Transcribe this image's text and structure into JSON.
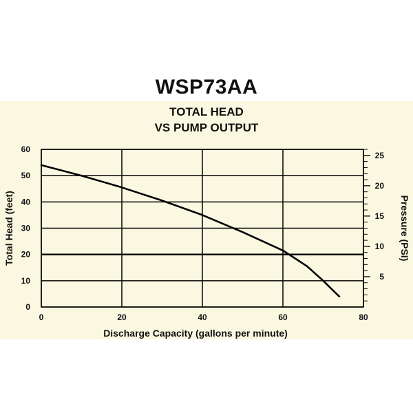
{
  "chart_data": {
    "type": "line",
    "title": "WSP73AA",
    "subtitle_line1": "TOTAL HEAD",
    "subtitle_line2": "VS PUMP OUTPUT",
    "xlabel": "Discharge Capacity (gallons per minute)",
    "ylabel": "Total Head (feet)",
    "y2label": "Pressure (PSI)",
    "xlim": [
      0,
      80
    ],
    "ylim": [
      0,
      60
    ],
    "y2lim": [
      0,
      26
    ],
    "x_ticks": [
      "0",
      "20",
      "40",
      "60",
      "80"
    ],
    "y_ticks": [
      "0",
      "10",
      "20",
      "30",
      "40",
      "50",
      "60"
    ],
    "y2_ticks": [
      "5",
      "10",
      "15",
      "20",
      "25"
    ],
    "grid": true,
    "series": [
      {
        "name": "",
        "color": "#000000",
        "x": [
          0,
          10,
          20,
          30,
          40,
          50,
          60,
          66,
          70,
          72,
          74
        ],
        "y": [
          54,
          50,
          45.5,
          40.5,
          35,
          28.5,
          21.5,
          15.5,
          10,
          7,
          4
        ]
      }
    ]
  }
}
